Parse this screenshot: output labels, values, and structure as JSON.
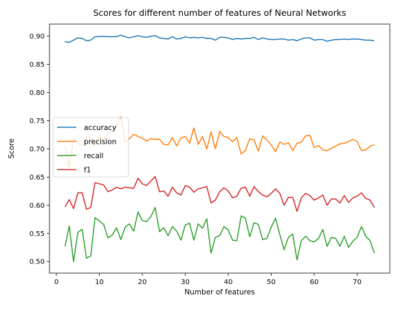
{
  "chart_data": {
    "type": "line",
    "title": "Scores for different number of features of Neural Networks",
    "xlabel": "Number of features",
    "ylabel": "Score",
    "xlim": [
      -1.6,
      77.6
    ],
    "ylim": [
      0.4795,
      0.9215
    ],
    "xticks": [
      0,
      10,
      20,
      30,
      40,
      50,
      60,
      70
    ],
    "yticks": [
      0.5,
      0.55,
      0.6,
      0.65,
      0.7,
      0.75,
      0.8,
      0.85,
      0.9
    ],
    "ytick_labels": [
      "0.50",
      "0.55",
      "0.60",
      "0.65",
      "0.70",
      "0.75",
      "0.80",
      "0.85",
      "0.90"
    ],
    "grid": false,
    "legend_position": "center-left",
    "x": [
      2,
      3,
      4,
      5,
      6,
      7,
      8,
      9,
      10,
      11,
      12,
      13,
      14,
      15,
      16,
      17,
      18,
      19,
      20,
      21,
      22,
      23,
      24,
      25,
      26,
      27,
      28,
      29,
      30,
      31,
      32,
      33,
      34,
      35,
      36,
      37,
      38,
      39,
      40,
      41,
      42,
      43,
      44,
      45,
      46,
      47,
      48,
      49,
      50,
      51,
      52,
      53,
      54,
      55,
      56,
      57,
      58,
      59,
      60,
      61,
      62,
      63,
      64,
      65,
      66,
      67,
      68,
      69,
      70,
      71,
      72,
      73,
      74
    ],
    "series": [
      {
        "name": "accuracy",
        "color": "#1f77b4",
        "values": [
          0.89,
          0.889,
          0.893,
          0.897,
          0.896,
          0.892,
          0.893,
          0.899,
          0.899,
          0.9,
          0.899,
          0.899,
          0.899,
          0.902,
          0.899,
          0.897,
          0.899,
          0.901,
          0.899,
          0.898,
          0.9,
          0.901,
          0.897,
          0.896,
          0.895,
          0.899,
          0.895,
          0.896,
          0.899,
          0.897,
          0.898,
          0.897,
          0.898,
          0.896,
          0.896,
          0.893,
          0.898,
          0.898,
          0.897,
          0.894,
          0.896,
          0.895,
          0.896,
          0.896,
          0.898,
          0.894,
          0.897,
          0.895,
          0.894,
          0.894,
          0.895,
          0.895,
          0.893,
          0.894,
          0.892,
          0.895,
          0.897,
          0.897,
          0.893,
          0.894,
          0.894,
          0.891,
          0.893,
          0.894,
          0.894,
          0.895,
          0.894,
          0.895,
          0.895,
          0.894,
          0.893,
          0.893,
          0.892
        ]
      },
      {
        "name": "precision",
        "color": "#ff7f0e",
        "values": [
          0.705,
          0.668,
          0.72,
          0.71,
          0.705,
          0.721,
          0.72,
          0.708,
          0.722,
          0.715,
          0.727,
          0.73,
          0.74,
          0.757,
          0.712,
          0.718,
          0.726,
          0.722,
          0.719,
          0.714,
          0.718,
          0.717,
          0.717,
          0.708,
          0.707,
          0.72,
          0.705,
          0.719,
          0.722,
          0.71,
          0.737,
          0.708,
          0.722,
          0.7,
          0.73,
          0.7,
          0.731,
          0.722,
          0.72,
          0.713,
          0.72,
          0.691,
          0.697,
          0.718,
          0.716,
          0.696,
          0.723,
          0.716,
          0.707,
          0.695,
          0.712,
          0.708,
          0.711,
          0.697,
          0.71,
          0.712,
          0.723,
          0.724,
          0.702,
          0.706,
          0.698,
          0.697,
          0.701,
          0.705,
          0.709,
          0.71,
          0.713,
          0.717,
          0.713,
          0.697,
          0.698,
          0.705,
          0.707
        ]
      },
      {
        "name": "recall",
        "color": "#2ca02c",
        "values": [
          0.527,
          0.563,
          0.5,
          0.552,
          0.557,
          0.506,
          0.51,
          0.578,
          0.572,
          0.566,
          0.542,
          0.547,
          0.56,
          0.539,
          0.561,
          0.567,
          0.554,
          0.588,
          0.573,
          0.571,
          0.58,
          0.596,
          0.553,
          0.56,
          0.546,
          0.562,
          0.554,
          0.538,
          0.565,
          0.568,
          0.538,
          0.567,
          0.559,
          0.576,
          0.515,
          0.543,
          0.546,
          0.562,
          0.556,
          0.538,
          0.537,
          0.581,
          0.577,
          0.544,
          0.569,
          0.566,
          0.539,
          0.541,
          0.561,
          0.577,
          0.548,
          0.521,
          0.543,
          0.549,
          0.503,
          0.537,
          0.545,
          0.537,
          0.535,
          0.541,
          0.557,
          0.527,
          0.543,
          0.541,
          0.527,
          0.545,
          0.525,
          0.536,
          0.543,
          0.562,
          0.545,
          0.537,
          0.515
        ]
      },
      {
        "name": "f1",
        "color": "#d62728",
        "values": [
          0.597,
          0.61,
          0.594,
          0.622,
          0.622,
          0.593,
          0.596,
          0.64,
          0.638,
          0.636,
          0.624,
          0.627,
          0.632,
          0.629,
          0.632,
          0.631,
          0.63,
          0.648,
          0.638,
          0.635,
          0.643,
          0.651,
          0.624,
          0.625,
          0.616,
          0.632,
          0.622,
          0.618,
          0.635,
          0.632,
          0.623,
          0.629,
          0.631,
          0.633,
          0.604,
          0.609,
          0.624,
          0.631,
          0.625,
          0.613,
          0.616,
          0.63,
          0.632,
          0.616,
          0.633,
          0.624,
          0.618,
          0.615,
          0.621,
          0.629,
          0.621,
          0.6,
          0.614,
          0.614,
          0.589,
          0.613,
          0.621,
          0.617,
          0.609,
          0.613,
          0.618,
          0.6,
          0.611,
          0.611,
          0.604,
          0.617,
          0.605,
          0.613,
          0.616,
          0.622,
          0.612,
          0.609,
          0.596
        ]
      }
    ]
  }
}
